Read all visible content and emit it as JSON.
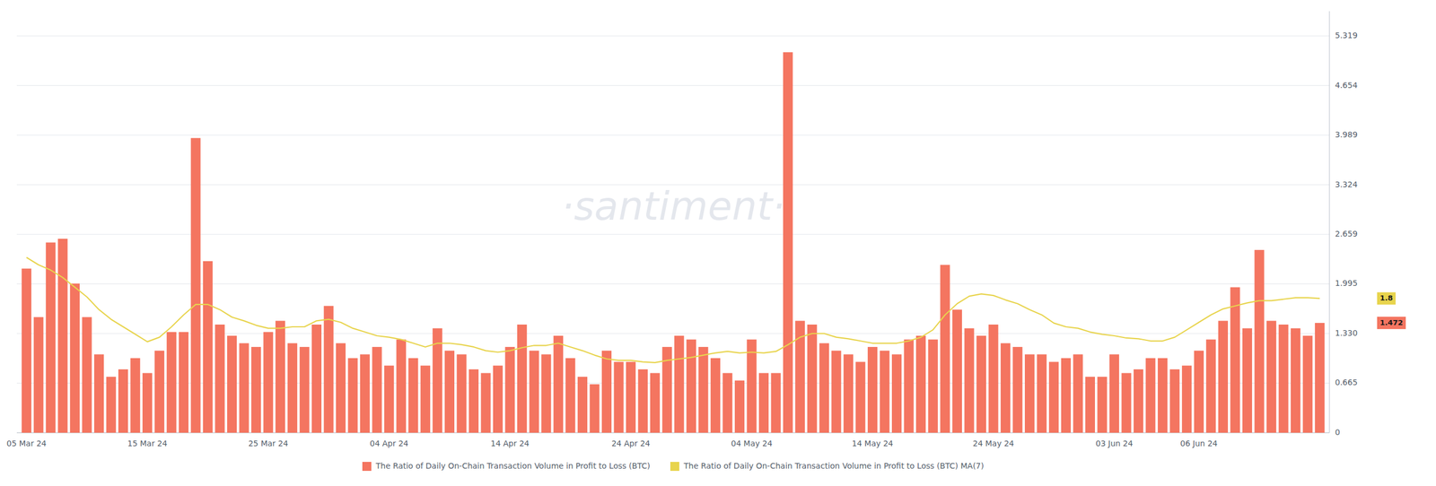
{
  "chart_data": {
    "type": "bar",
    "categories": [
      "05 Mar 24",
      null,
      null,
      null,
      null,
      null,
      null,
      null,
      null,
      null,
      "15 Mar 24",
      null,
      null,
      null,
      null,
      null,
      null,
      null,
      null,
      null,
      "25 Mar 24",
      null,
      null,
      null,
      null,
      null,
      null,
      null,
      null,
      null,
      "04 Apr 24",
      null,
      null,
      null,
      null,
      null,
      null,
      null,
      null,
      null,
      "14 Apr 24",
      null,
      null,
      null,
      null,
      null,
      null,
      null,
      null,
      null,
      "24 Apr 24",
      null,
      null,
      null,
      null,
      null,
      null,
      null,
      null,
      null,
      "04 May 24",
      null,
      null,
      null,
      null,
      null,
      null,
      null,
      null,
      null,
      "14 May 24",
      null,
      null,
      null,
      null,
      null,
      null,
      null,
      null,
      null,
      "24 May 24",
      null,
      null,
      null,
      null,
      null,
      null,
      null,
      null,
      null,
      "03 Jun 24",
      null,
      null,
      null,
      null,
      null,
      null,
      "06 Jun 24",
      null,
      null,
      null,
      null,
      null,
      null,
      null,
      null,
      null,
      null
    ],
    "series": [
      {
        "name": "The Ratio of Daily On-Chain Transaction Volume in Profit to Loss (BTC)",
        "type": "bar",
        "color": "#f47560",
        "values": [
          2.2,
          1.55,
          2.55,
          2.6,
          2.0,
          1.55,
          1.05,
          0.75,
          0.85,
          1.0,
          0.8,
          1.1,
          1.35,
          1.35,
          3.95,
          2.3,
          1.45,
          1.3,
          1.2,
          1.15,
          1.35,
          1.5,
          1.2,
          1.15,
          1.45,
          1.7,
          1.2,
          1.0,
          1.05,
          1.15,
          0.9,
          1.25,
          1.0,
          0.9,
          1.4,
          1.1,
          1.05,
          0.85,
          0.8,
          0.9,
          1.15,
          1.45,
          1.1,
          1.05,
          1.3,
          1.0,
          0.75,
          0.65,
          1.1,
          0.95,
          0.95,
          0.85,
          0.8,
          1.15,
          1.3,
          1.25,
          1.15,
          1.0,
          0.8,
          0.7,
          1.25,
          0.8,
          0.8,
          5.1,
          1.5,
          1.45,
          1.2,
          1.1,
          1.05,
          0.95,
          1.15,
          1.1,
          1.05,
          1.25,
          1.3,
          1.25,
          2.25,
          1.65,
          1.4,
          1.3,
          1.45,
          1.2,
          1.15,
          1.05,
          1.05,
          0.95,
          1.0,
          1.05,
          0.75,
          0.75,
          1.05,
          0.8,
          0.85,
          1.0,
          1.0,
          0.85,
          0.9,
          1.1,
          1.25,
          1.5,
          1.95,
          1.4,
          2.45,
          1.5,
          1.45,
          1.4,
          1.3,
          1.472
        ]
      },
      {
        "name": "The Ratio of Daily On-Chain Transaction Volume in Profit to Loss (BTC) MA(7)",
        "type": "line",
        "color": "#e8d44d",
        "values": [
          2.35,
          2.25,
          2.18,
          2.08,
          1.95,
          1.82,
          1.65,
          1.52,
          1.42,
          1.32,
          1.22,
          1.28,
          1.42,
          1.58,
          1.72,
          1.72,
          1.65,
          1.55,
          1.5,
          1.44,
          1.4,
          1.4,
          1.42,
          1.42,
          1.5,
          1.52,
          1.48,
          1.4,
          1.35,
          1.3,
          1.28,
          1.25,
          1.2,
          1.15,
          1.2,
          1.2,
          1.18,
          1.15,
          1.1,
          1.08,
          1.1,
          1.14,
          1.17,
          1.17,
          1.2,
          1.15,
          1.1,
          1.04,
          0.99,
          0.97,
          0.97,
          0.95,
          0.94,
          0.97,
          0.99,
          1.01,
          1.04,
          1.07,
          1.09,
          1.07,
          1.08,
          1.07,
          1.09,
          1.18,
          1.28,
          1.33,
          1.33,
          1.28,
          1.26,
          1.23,
          1.2,
          1.2,
          1.2,
          1.23,
          1.28,
          1.38,
          1.58,
          1.73,
          1.83,
          1.86,
          1.84,
          1.78,
          1.73,
          1.65,
          1.58,
          1.47,
          1.42,
          1.4,
          1.35,
          1.32,
          1.3,
          1.27,
          1.26,
          1.23,
          1.23,
          1.28,
          1.38,
          1.48,
          1.58,
          1.66,
          1.7,
          1.74,
          1.77,
          1.77,
          1.79,
          1.81,
          1.81,
          1.8
        ]
      }
    ],
    "ylim": [
      0,
      5.65
    ],
    "yticks": [
      0,
      0.665,
      {
        "value": 1.33,
        "label": "1.330"
      },
      1.995,
      2.659,
      3.324,
      3.989,
      4.654,
      5.319
    ],
    "grid": true,
    "legend": "bottom",
    "watermark": "·santiment·",
    "annotations": [
      {
        "text": "1.8",
        "y": 1.8,
        "color": "#e8d44d"
      },
      {
        "text": "1.472",
        "y": 1.472,
        "color": "#f47560"
      }
    ]
  }
}
